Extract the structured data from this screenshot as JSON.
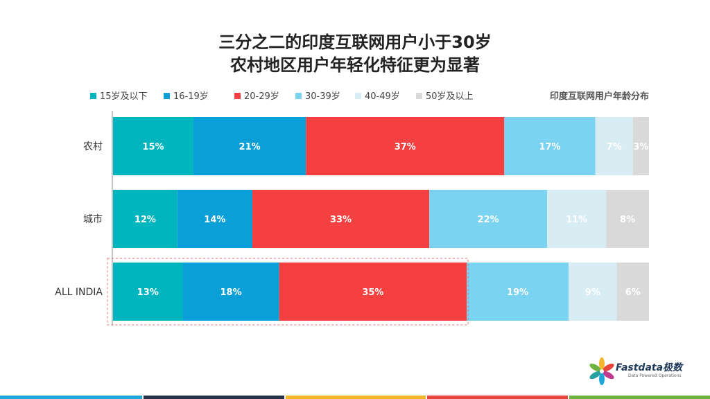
{
  "title_line1": "三分之二的印度互联网用户小于30岁",
  "title_line2": "农村地区用户年轻化特征更为显著",
  "subtitle": "印度互联网用户年龄分布",
  "logo": {
    "name": "Fastdata极数",
    "tagline": "Data Powered Operations"
  },
  "bottom_bar_colors": [
    "#1ea7d8",
    "#26324a",
    "#f3b62a",
    "#e8453c",
    "#6db33f"
  ],
  "chart_data": {
    "type": "bar",
    "orientation": "horizontal",
    "stacked": true,
    "normalized": true,
    "categories": [
      "农村",
      "城市",
      "ALL INDIA"
    ],
    "series": [
      {
        "name": "15岁及以下",
        "color": "#00b5bd",
        "values": [
          15,
          12,
          13
        ],
        "labels": [
          "15%",
          "12%",
          "13%"
        ]
      },
      {
        "name": "16-19岁",
        "color": "#0a9fd6",
        "values": [
          21,
          14,
          18
        ],
        "labels": [
          "21%",
          "14%",
          "18%"
        ]
      },
      {
        "name": "20-29岁",
        "color": "#f44041",
        "values": [
          37,
          33,
          35
        ],
        "labels": [
          "37%",
          "33%",
          "35%"
        ]
      },
      {
        "name": "30-39岁",
        "color": "#7bd3f2",
        "values": [
          17,
          22,
          19
        ],
        "labels": [
          "17%",
          "22%",
          "19%"
        ]
      },
      {
        "name": "40-49岁",
        "color": "#d8ecf3",
        "values": [
          7,
          11,
          9
        ],
        "labels": [
          "7%",
          "11%",
          "9%"
        ]
      },
      {
        "name": "50岁及以上",
        "color": "#d9d9d9",
        "values": [
          3,
          8,
          6
        ],
        "labels": [
          "3%",
          "8%",
          "6%"
        ]
      }
    ],
    "highlight": {
      "category": "ALL INDIA",
      "series_span": [
        "15岁及以下",
        "20-29岁"
      ]
    },
    "legend_position": "top-left",
    "grid": false
  }
}
